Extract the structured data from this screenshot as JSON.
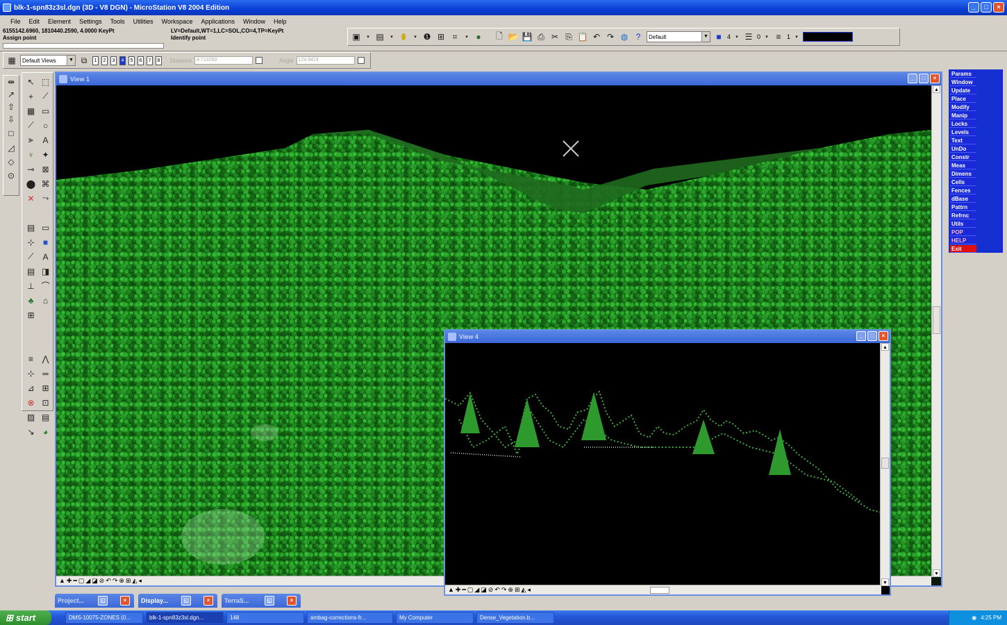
{
  "window": {
    "title": "blk-1-spn83z3sl.dgn (3D - V8 DGN) - MicroStation V8 2004 Edition",
    "buttons": [
      "_",
      "□",
      "×"
    ]
  },
  "menu": [
    "File",
    "Edit",
    "Element",
    "Settings",
    "Tools",
    "Utilities",
    "Workspace",
    "Applications",
    "Window",
    "Help"
  ],
  "status": {
    "coords": "6155142.6960, 1810440.2590, 4.0000 KeyPt",
    "prompt": "Assign point",
    "level_info": "LV=Default,WT=1,LC=SOL,CO=4,TP=KeyPt",
    "message": "Identify point"
  },
  "toolbar": {
    "level_combo": "Default",
    "color_value": "4",
    "style_value": "0",
    "weight_value": "1"
  },
  "view_toolbar": {
    "views_combo": "Default Views",
    "view_numbers": [
      "1",
      "2",
      "3",
      "4",
      "5",
      "6",
      "7",
      "8"
    ],
    "distance_label": "Distance",
    "distance_value": "4.713250",
    "angle_label": "Angle",
    "angle_value": "124.9419"
  },
  "command_panel": [
    "Params",
    "Window",
    "Update",
    "Place",
    "Modify",
    "Manip",
    "Locks",
    "Levels",
    "Text",
    "UnDo",
    "Constr",
    "Meas",
    "Dimens",
    "Cells",
    "Fences",
    "dBase",
    "Pattrn",
    "Refrnc",
    "Utils",
    "POP",
    "HELP",
    "Exit"
  ],
  "views": {
    "view1_title": "View 1",
    "view4_title": "View 4",
    "view_controls": "▲✚━▢◢◪⊘↶↷⊕⊞◭◂"
  },
  "minimized": [
    "Project...",
    "Display...",
    "TerraS..."
  ],
  "taskbar": {
    "start": "start",
    "tasks": [
      "DMS-10075-ZONES (0...",
      "blk-1-spn83z3sl.dgn...",
      "148",
      "ambag-corrections-fr...",
      "My Computer",
      "Dense_Vegetation.b..."
    ],
    "clock": "4:25 PM"
  },
  "colors": {
    "titlebar": "#0a3fd6",
    "vegetation": "#1f8f1f",
    "command_panel": "#1530d0",
    "exit": "#e01010"
  },
  "icons": [
    "app-icon",
    "minimize-icon",
    "maximize-icon",
    "close-icon",
    "new-file-icon",
    "open-icon",
    "save-icon",
    "print-icon",
    "cut-icon",
    "copy-icon",
    "paste-icon",
    "undo-icon",
    "redo-icon",
    "help-icon"
  ]
}
